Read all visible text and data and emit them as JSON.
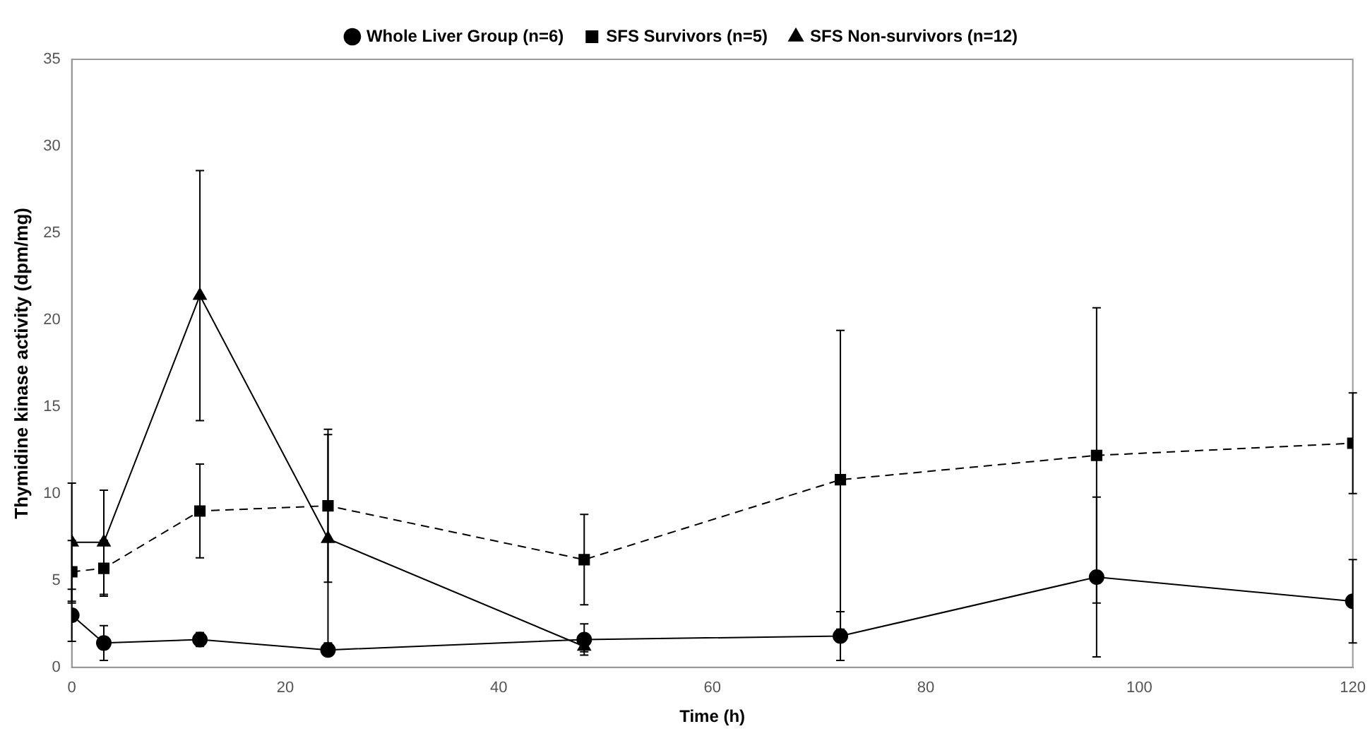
{
  "chart_data": {
    "type": "line",
    "xlabel": "Time (h)",
    "ylabel": "Thymidine kinase activity (dpm/mg)",
    "xlim": [
      0,
      120
    ],
    "xticks": [
      0,
      20,
      40,
      60,
      80,
      100,
      120
    ],
    "ylim": [
      0,
      35
    ],
    "yticks": [
      0,
      5,
      10,
      15,
      20,
      25,
      30,
      35
    ],
    "grid": false,
    "legend": "top",
    "series": [
      {
        "name": "Whole Liver Group (n=6)",
        "color": "#000000",
        "marker": "circle",
        "line_style": "solid",
        "x": [
          0,
          3,
          12,
          24,
          48,
          72,
          96,
          120
        ],
        "values": [
          3.0,
          1.4,
          1.6,
          1.0,
          1.6,
          1.8,
          5.2,
          3.8
        ],
        "errors": [
          1.5,
          1.0,
          0.4,
          null,
          0.9,
          1.4,
          4.6,
          2.4
        ]
      },
      {
        "name": "SFS Survivors (n=5)",
        "color": "#000000",
        "marker": "square",
        "line_style": "dashed",
        "x": [
          0,
          3,
          12,
          24,
          48,
          72,
          96,
          120
        ],
        "values": [
          5.5,
          5.7,
          9.0,
          9.3,
          6.2,
          10.8,
          12.2,
          12.9
        ],
        "errors": [
          1.8,
          1.6,
          2.7,
          4.4,
          2.6,
          8.6,
          8.5,
          2.9
        ]
      },
      {
        "name": "SFS Non-survivors (n=12)",
        "color": "#000000",
        "marker": "triangle",
        "line_style": "solid",
        "x": [
          0,
          3,
          12,
          24,
          48
        ],
        "values": [
          7.2,
          7.2,
          21.4,
          7.4,
          1.2
        ],
        "errors": [
          3.4,
          3.0,
          7.2,
          6.0,
          0.3
        ]
      }
    ]
  }
}
